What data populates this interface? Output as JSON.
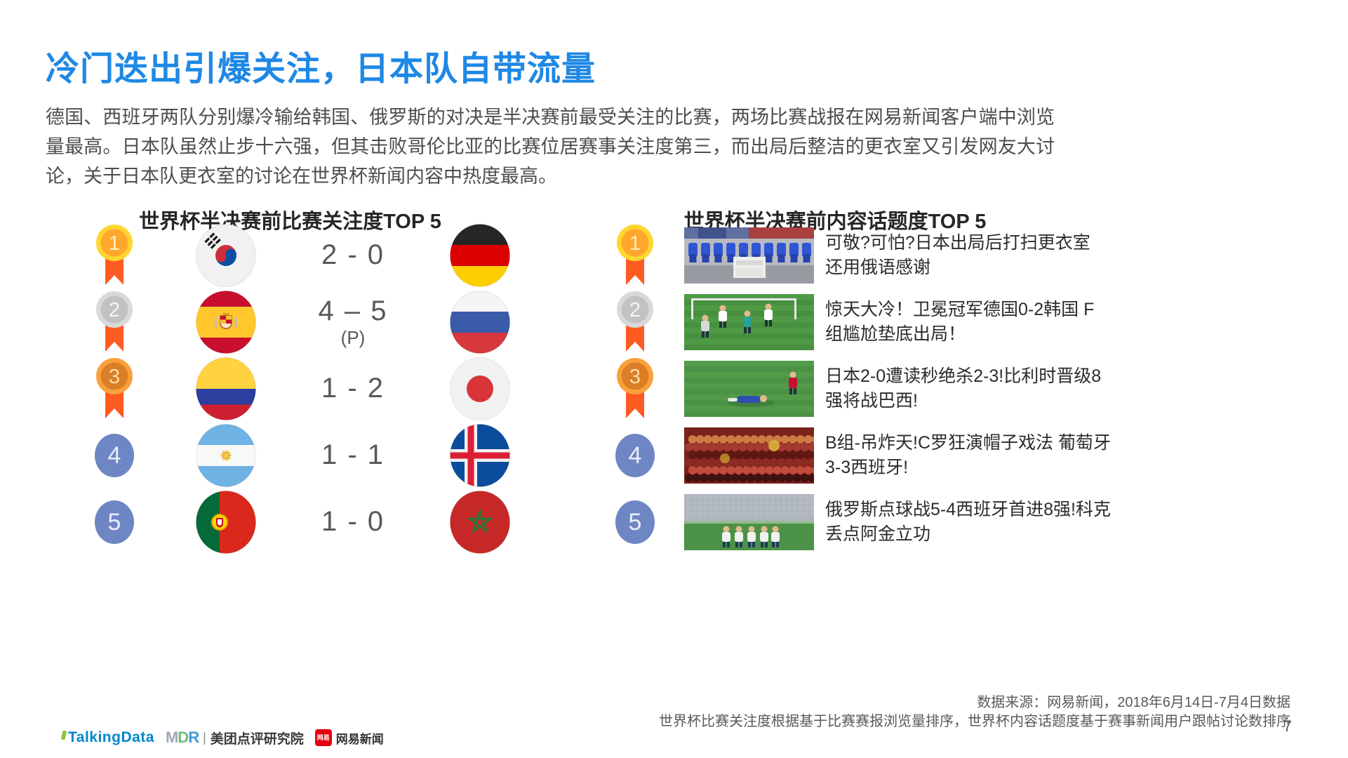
{
  "slide": {
    "title": "冷门迭出引爆关注，日本队自带流量",
    "body": "德国、西班牙两队分别爆冷输给韩国、俄罗斯的对决是半决赛前最受关注的比赛，两场比赛战报在网易新闻客户端中浏览量最高。日本队虽然止步十六强，但其击败哥伦比亚的比赛位居赛事关注度第三，而出局后整洁的更衣室又引发网友大讨论，关于日本队更衣室的讨论在世界杯新闻内容中热度最高。",
    "page_number": "7"
  },
  "left_panel": {
    "title": "世界杯半决赛前比赛关注度TOP 5",
    "rows": [
      {
        "rank": "1",
        "medal": "gold",
        "home_flag": "south-korea",
        "score": "2 - 0",
        "score_note": "",
        "away_flag": "germany"
      },
      {
        "rank": "2",
        "medal": "silver",
        "home_flag": "spain",
        "score": "4 – 5",
        "score_note": "(P)",
        "away_flag": "russia"
      },
      {
        "rank": "3",
        "medal": "bronze",
        "home_flag": "colombia",
        "score": "1 - 2",
        "score_note": "",
        "away_flag": "japan"
      },
      {
        "rank": "4",
        "medal": "plain",
        "home_flag": "argentina",
        "score": "1 - 1",
        "score_note": "",
        "away_flag": "iceland"
      },
      {
        "rank": "5",
        "medal": "plain",
        "home_flag": "portugal",
        "score": "1 - 0",
        "score_note": "",
        "away_flag": "morocco"
      }
    ]
  },
  "right_panel": {
    "title": "世界杯半决赛前内容话题度TOP 5",
    "rows": [
      {
        "rank": "1",
        "medal": "gold",
        "thumbnail": "japan-locker-room",
        "headline": "可敬?可怕?日本出局后打扫更衣室 还用俄语感谢"
      },
      {
        "rank": "2",
        "medal": "silver",
        "thumbnail": "germany-korea-match",
        "headline": "惊天大冷！卫冕冠军德国0-2韩国 F组尴尬垫底出局！"
      },
      {
        "rank": "3",
        "medal": "bronze",
        "thumbnail": "japan-belgium-match",
        "headline": "日本2-0遭读秒绝杀2-3!比利时晋级8强将战巴西!"
      },
      {
        "rank": "4",
        "medal": "plain",
        "thumbnail": "portugal-fans",
        "headline": "B组-吊炸天!C罗狂演帽子戏法 葡萄牙3-3西班牙!"
      },
      {
        "rank": "5",
        "medal": "plain",
        "thumbnail": "russia-celebration",
        "headline": "俄罗斯点球战5-4西班牙首进8强!科克丢点阿金立功"
      }
    ]
  },
  "footer": {
    "source_line1": "数据来源：网易新闻，2018年6月14日-7月4日数据",
    "source_line2": "世界杯比赛关注度根据基于比赛赛报浏览量排序，世界杯内容话题度基于赛事新闻用户跟帖讨论数排序",
    "logos": {
      "talkingdata": "TalkingData",
      "mdr_letters": [
        "M",
        "D",
        "R"
      ],
      "divider": "|",
      "mdr_text": "美团点评研究院",
      "netease_badge": "网易",
      "netease_text": "网易新闻"
    }
  },
  "colors": {
    "accent_blue": "#1E88E5",
    "body_text": "#4D4D4D",
    "heading_text": "#262626",
    "score_text": "#595959",
    "footer_text": "#595959",
    "rank_plain_blue": "#6E86C3",
    "medal_gold": "#FFD52E",
    "medal_silver": "#D9D9D9",
    "medal_bronze": "#F9A03C",
    "ribbon_orange": "#FF5A22",
    "talkingdata_blue": "#0087CB",
    "talkingdata_green": "#8DC63F",
    "netease_red": "#E60012"
  }
}
